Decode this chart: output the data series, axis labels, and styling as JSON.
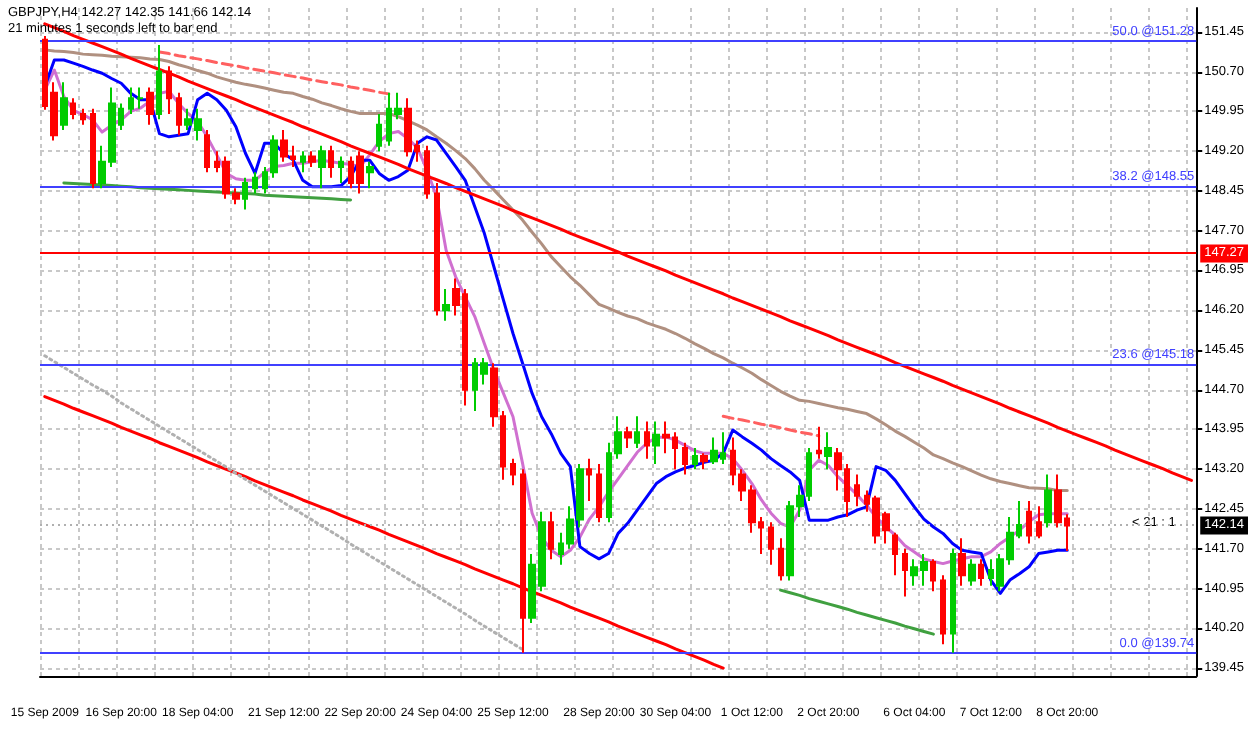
{
  "chart_data": {
    "type": "candlestick",
    "title": "GBPJPY,H4 142.27 142.35 141.66 142.14",
    "subtitle": "21 minutes 1 seconds left to bar end",
    "annotations": [
      "< 21 : 1"
    ],
    "categories": [
      "15 Sep 2009",
      null,
      null,
      null,
      null,
      null,
      null,
      null,
      "16 Sep 20:00",
      null,
      null,
      null,
      null,
      null,
      null,
      null,
      "18 Sep 04:00",
      null,
      null,
      null,
      null,
      null,
      null,
      null,
      null,
      "21 Sep 12:00",
      null,
      null,
      null,
      null,
      null,
      null,
      null,
      "22 Sep 20:00",
      null,
      null,
      null,
      null,
      null,
      null,
      null,
      "24 Sep 04:00",
      null,
      null,
      null,
      null,
      null,
      null,
      null,
      "25 Sep 12:00",
      null,
      null,
      null,
      null,
      null,
      null,
      null,
      null,
      "28 Sep 20:00",
      null,
      null,
      null,
      null,
      null,
      null,
      null,
      "30 Sep 04:00",
      null,
      null,
      null,
      null,
      null,
      null,
      null,
      "1 Oct 12:00",
      null,
      null,
      null,
      null,
      null,
      null,
      null,
      "2 Oct 20:00",
      null,
      null,
      null,
      null,
      null,
      null,
      null,
      null,
      "6 Oct 04:00",
      null,
      null,
      null,
      null,
      null,
      null,
      null,
      "7 Oct 12:00",
      null,
      null,
      null,
      null,
      null,
      null,
      null,
      "8 Oct 20:00",
      null,
      null,
      null,
      null,
      null,
      null,
      null,
      null,
      null,
      null,
      null,
      null,
      null
    ],
    "ohlc": [
      [
        151.3,
        151.37,
        149.98,
        150.05
      ],
      [
        150.3,
        150.5,
        149.4,
        149.5
      ],
      [
        149.7,
        150.5,
        149.6,
        150.2
      ],
      [
        150.1,
        150.2,
        149.8,
        149.9
      ],
      [
        149.9,
        150.0,
        149.7,
        149.8
      ],
      [
        149.9,
        150.0,
        148.5,
        148.6
      ],
      [
        148.6,
        149.3,
        148.5,
        149.0
      ],
      [
        149.0,
        150.4,
        148.9,
        150.1
      ],
      [
        149.7,
        150.1,
        149.6,
        150.0
      ],
      [
        150.0,
        150.4,
        149.9,
        150.2
      ],
      [
        150.2,
        150.4,
        150.0,
        150.2
      ],
      [
        150.3,
        150.4,
        149.7,
        149.9
      ],
      [
        149.9,
        151.2,
        149.8,
        150.7
      ],
      [
        150.7,
        150.8,
        149.9,
        150.2
      ],
      [
        150.2,
        150.3,
        149.5,
        149.7
      ],
      [
        149.7,
        150.0,
        149.6,
        149.8
      ],
      [
        149.6,
        150.0,
        149.4,
        149.8
      ],
      [
        149.5,
        149.6,
        148.8,
        148.9
      ],
      [
        149.0,
        149.2,
        148.8,
        148.9
      ],
      [
        149.0,
        149.1,
        148.3,
        148.4
      ],
      [
        148.4,
        148.5,
        148.2,
        148.3
      ],
      [
        148.3,
        148.7,
        148.1,
        148.6
      ],
      [
        148.5,
        148.8,
        148.4,
        148.7
      ],
      [
        148.5,
        148.9,
        148.4,
        148.8
      ],
      [
        148.8,
        149.5,
        148.7,
        149.4
      ],
      [
        149.4,
        149.6,
        149.0,
        149.1
      ],
      [
        149.1,
        149.3,
        148.9,
        149.05
      ],
      [
        149.0,
        149.2,
        148.8,
        149.1
      ],
      [
        149.1,
        149.2,
        148.9,
        149.0
      ],
      [
        148.9,
        149.3,
        148.5,
        149.2
      ],
      [
        149.2,
        149.3,
        148.7,
        148.9
      ],
      [
        148.9,
        149.1,
        148.6,
        149.0
      ],
      [
        149.0,
        149.1,
        148.5,
        148.6
      ],
      [
        149.1,
        149.2,
        148.4,
        148.6
      ],
      [
        148.8,
        149.0,
        148.5,
        148.9
      ],
      [
        149.3,
        149.9,
        149.2,
        149.7
      ],
      [
        149.4,
        150.3,
        149.3,
        150.0
      ],
      [
        149.9,
        150.3,
        149.8,
        150.0
      ],
      [
        150.0,
        150.2,
        149.1,
        149.2
      ],
      [
        149.3,
        149.4,
        149.0,
        149.2
      ],
      [
        149.2,
        149.3,
        148.3,
        148.4
      ],
      [
        148.4,
        148.6,
        146.1,
        146.2
      ],
      [
        146.2,
        146.6,
        146.0,
        146.3
      ],
      [
        146.6,
        146.8,
        146.1,
        146.3
      ],
      [
        146.5,
        146.6,
        144.4,
        144.7
      ],
      [
        144.7,
        145.3,
        144.3,
        145.2
      ],
      [
        145.0,
        145.3,
        144.8,
        145.2
      ],
      [
        145.1,
        145.2,
        144.0,
        144.2
      ],
      [
        144.2,
        144.3,
        143.0,
        143.25
      ],
      [
        143.3,
        143.4,
        142.9,
        143.1
      ],
      [
        143.1,
        143.2,
        139.74,
        140.4
      ],
      [
        140.4,
        141.6,
        140.3,
        141.4
      ],
      [
        141.0,
        142.4,
        140.9,
        142.2
      ],
      [
        142.2,
        142.4,
        141.5,
        141.7
      ],
      [
        141.6,
        142.0,
        141.4,
        141.8
      ],
      [
        141.8,
        142.5,
        141.7,
        142.25
      ],
      [
        142.25,
        143.3,
        142.1,
        143.2
      ],
      [
        143.2,
        143.4,
        142.6,
        143.1
      ],
      [
        143.1,
        143.3,
        142.2,
        142.3
      ],
      [
        142.3,
        143.7,
        142.2,
        143.5
      ],
      [
        143.5,
        144.2,
        143.4,
        143.9
      ],
      [
        143.9,
        144.0,
        143.6,
        143.8
      ],
      [
        143.7,
        144.2,
        143.6,
        143.9
      ],
      [
        143.9,
        144.1,
        143.4,
        143.65
      ],
      [
        143.65,
        144.1,
        143.3,
        143.85
      ],
      [
        143.85,
        144.1,
        143.5,
        143.8
      ],
      [
        143.8,
        143.9,
        143.2,
        143.6
      ],
      [
        143.6,
        143.7,
        143.1,
        143.3
      ],
      [
        143.3,
        143.6,
        143.2,
        143.45
      ],
      [
        143.45,
        143.5,
        143.2,
        143.35
      ],
      [
        143.35,
        143.8,
        143.3,
        143.55
      ],
      [
        143.4,
        143.9,
        143.3,
        143.5
      ],
      [
        143.55,
        143.8,
        142.9,
        143.1
      ],
      [
        143.1,
        143.2,
        142.6,
        142.8
      ],
      [
        142.8,
        142.9,
        142.0,
        142.2
      ],
      [
        142.2,
        142.3,
        141.6,
        142.1
      ],
      [
        142.1,
        142.2,
        141.4,
        141.7
      ],
      [
        141.7,
        141.9,
        141.1,
        141.2
      ],
      [
        141.2,
        142.6,
        141.1,
        142.5
      ],
      [
        142.5,
        142.9,
        142.3,
        142.7
      ],
      [
        142.7,
        143.6,
        142.6,
        143.5
      ],
      [
        143.55,
        144.0,
        143.4,
        143.5
      ],
      [
        143.45,
        143.9,
        143.2,
        143.6
      ],
      [
        143.5,
        143.6,
        142.8,
        143.2
      ],
      [
        143.2,
        143.3,
        142.3,
        142.6
      ],
      [
        142.9,
        143.1,
        142.5,
        142.7
      ],
      [
        142.7,
        142.8,
        142.4,
        142.55
      ],
      [
        142.65,
        142.7,
        141.8,
        141.95
      ],
      [
        142.35,
        142.4,
        141.8,
        142.05
      ],
      [
        141.95,
        142.0,
        141.2,
        141.6
      ],
      [
        141.6,
        141.7,
        140.8,
        141.3
      ],
      [
        141.2,
        141.5,
        141.0,
        141.35
      ],
      [
        141.3,
        141.6,
        141.0,
        141.45
      ],
      [
        141.45,
        141.5,
        140.9,
        141.1
      ],
      [
        141.1,
        141.2,
        139.9,
        140.1
      ],
      [
        140.1,
        141.7,
        139.74,
        141.6
      ],
      [
        141.6,
        141.9,
        141.0,
        141.2
      ],
      [
        141.1,
        141.5,
        141.0,
        141.4
      ],
      [
        141.4,
        141.5,
        141.0,
        141.15
      ],
      [
        141.15,
        141.5,
        141.0,
        141.3
      ],
      [
        141.0,
        141.6,
        140.9,
        141.5
      ],
      [
        141.5,
        142.3,
        141.4,
        142.0
      ],
      [
        141.95,
        142.6,
        141.9,
        142.15
      ],
      [
        142.4,
        142.6,
        141.8,
        141.95
      ],
      [
        142.2,
        142.5,
        141.9,
        141.95
      ],
      [
        142.2,
        143.1,
        142.1,
        142.8
      ],
      [
        142.8,
        143.1,
        142.1,
        142.2
      ],
      [
        142.27,
        142.35,
        141.66,
        142.14
      ],
      null,
      null,
      null,
      null,
      null,
      null,
      null,
      null,
      null,
      null,
      null,
      null,
      null
    ],
    "series": [
      {
        "type": "line",
        "color": "#b09080",
        "values": [
          151.11,
          151.09,
          151.08,
          151.06,
          151.03,
          151.02,
          151.01,
          150.99,
          150.98,
          150.97,
          150.96,
          150.94,
          150.93,
          150.89,
          150.83,
          150.78,
          150.72,
          150.67,
          150.6,
          150.55,
          150.5,
          150.46,
          150.43,
          150.39,
          150.35,
          150.31,
          150.29,
          150.23,
          150.18,
          150.11,
          150.06,
          150.0,
          149.95,
          149.91,
          149.91,
          149.91,
          149.91,
          149.85,
          149.77,
          149.69,
          149.6,
          149.47,
          149.35,
          149.21,
          149.06,
          148.87,
          148.65,
          148.47,
          148.28,
          148.09,
          147.9,
          147.67,
          147.45,
          147.21,
          147.02,
          146.83,
          146.67,
          146.49,
          146.31,
          146.24,
          146.16,
          146.09,
          146.04,
          145.96,
          145.9,
          145.84,
          145.76,
          145.67,
          145.57,
          145.48,
          145.38,
          145.3,
          145.2,
          145.11,
          145.01,
          144.89,
          144.78,
          144.67,
          144.58,
          144.5,
          144.48,
          144.44,
          144.4,
          144.36,
          144.33,
          144.29,
          144.25,
          144.15,
          144.04,
          143.92,
          143.82,
          143.71,
          143.6,
          143.47,
          143.4,
          143.32,
          143.25,
          143.17,
          143.09,
          143.02,
          142.97,
          142.93,
          142.89,
          142.85,
          142.84,
          142.83,
          142.8,
          142.8,
          null,
          null,
          null,
          null,
          null,
          null,
          null,
          null,
          null,
          null,
          null,
          null,
          null
        ]
      },
      {
        "type": "line",
        "color": "#d070d0",
        "values": [
          150.35,
          150.73,
          150.23,
          149.97,
          149.89,
          149.79,
          149.56,
          149.69,
          149.79,
          149.95,
          150.01,
          150.14,
          150.29,
          150.33,
          150.1,
          149.91,
          149.76,
          149.47,
          149.13,
          148.78,
          148.68,
          148.65,
          148.65,
          148.8,
          148.91,
          148.93,
          148.97,
          148.97,
          149.0,
          149.03,
          149.0,
          148.97,
          148.95,
          148.91,
          149.13,
          149.38,
          149.53,
          149.57,
          149.44,
          149.26,
          148.84,
          148.34,
          147.33,
          146.83,
          146.45,
          146.08,
          145.57,
          145.07,
          144.63,
          144.19,
          143.31,
          142.37,
          141.92,
          141.67,
          141.55,
          141.67,
          141.92,
          142.26,
          142.49,
          142.77,
          143.02,
          143.27,
          143.52,
          143.69,
          143.8,
          143.81,
          143.75,
          143.65,
          143.55,
          143.5,
          143.5,
          143.5,
          143.4,
          143.18,
          142.93,
          142.62,
          142.37,
          142.18,
          142.11,
          142.43,
          143.18,
          143.37,
          143.27,
          143.06,
          142.89,
          142.72,
          142.52,
          142.3,
          142.11,
          141.96,
          141.76,
          141.64,
          141.51,
          141.46,
          141.42,
          141.47,
          141.51,
          141.55,
          141.55,
          141.64,
          141.8,
          141.92,
          142.05,
          142.21,
          142.34,
          142.36,
          142.36,
          142.36,
          null,
          null,
          null,
          null,
          null,
          null,
          null,
          null,
          null,
          null,
          null,
          null,
          null
        ]
      },
      {
        "type": "line",
        "color": "#0000ff",
        "values": [
          150.41,
          150.92,
          150.92,
          150.86,
          150.8,
          150.73,
          150.67,
          150.57,
          150.48,
          150.29,
          150.17,
          150.17,
          149.53,
          149.47,
          149.5,
          149.53,
          150.17,
          150.29,
          150.17,
          149.97,
          149.66,
          149.16,
          148.78,
          149.35,
          149.35,
          149.16,
          149.03,
          148.65,
          148.53,
          148.53,
          148.53,
          148.55,
          148.72,
          149.03,
          149.03,
          148.78,
          148.65,
          148.72,
          148.84,
          149.35,
          149.47,
          149.41,
          149.16,
          148.91,
          148.65,
          148.15,
          147.65,
          147.02,
          146.39,
          145.76,
          145.2,
          144.63,
          144.19,
          143.87,
          143.5,
          143.25,
          141.74,
          141.61,
          141.51,
          141.61,
          141.99,
          142.18,
          142.43,
          142.68,
          142.93,
          143.06,
          143.15,
          143.22,
          143.27,
          143.33,
          143.37,
          143.5,
          143.94,
          143.81,
          143.69,
          143.56,
          143.4,
          143.27,
          143.15,
          142.99,
          142.24,
          142.24,
          142.24,
          142.3,
          142.34,
          142.43,
          142.49,
          143.25,
          143.18,
          142.99,
          142.74,
          142.49,
          142.26,
          142.11,
          141.99,
          141.8,
          141.67,
          141.64,
          141.61,
          141.11,
          140.86,
          141.11,
          141.23,
          141.36,
          141.61,
          141.64,
          141.67,
          141.67,
          null,
          null,
          null,
          null,
          null,
          null,
          null,
          null,
          null,
          null,
          null,
          null,
          null
        ]
      },
      {
        "type": "line",
        "color": "#ff0000",
        "values": [
          151.6,
          151.53,
          151.46,
          151.38,
          151.31,
          151.24,
          151.17,
          151.1,
          151.03,
          150.95,
          150.88,
          150.81,
          150.74,
          150.67,
          150.6,
          150.52,
          150.45,
          150.38,
          150.31,
          150.24,
          150.17,
          150.09,
          150.02,
          149.95,
          149.88,
          149.81,
          149.74,
          149.66,
          149.59,
          149.52,
          149.45,
          149.38,
          149.3,
          149.23,
          149.16,
          149.09,
          149.02,
          148.95,
          148.87,
          148.8,
          148.73,
          148.66,
          148.59,
          148.51,
          148.44,
          148.37,
          148.3,
          148.23,
          148.16,
          148.08,
          148.01,
          147.94,
          147.87,
          147.8,
          147.73,
          147.65,
          147.58,
          147.51,
          147.44,
          147.37,
          147.3,
          147.22,
          147.15,
          147.08,
          147.01,
          146.94,
          146.86,
          146.79,
          146.72,
          146.65,
          146.58,
          146.51,
          146.43,
          146.36,
          146.29,
          146.22,
          146.15,
          146.08,
          146.0,
          145.93,
          145.86,
          145.79,
          145.72,
          145.64,
          145.57,
          145.5,
          145.43,
          145.36,
          145.29,
          145.21,
          145.14,
          145.07,
          145.0,
          144.93,
          144.86,
          144.78,
          144.71,
          144.64,
          144.57,
          144.5,
          144.43,
          144.35,
          144.28,
          144.21,
          144.14,
          144.07,
          143.99,
          143.92,
          143.85,
          143.78,
          143.71,
          143.64,
          143.56,
          143.49,
          143.42,
          143.35,
          143.28,
          143.21,
          143.13,
          143.06,
          142.99
        ]
      },
      {
        "type": "line",
        "color": "#ff0000",
        "values": [
          144.57,
          144.5,
          144.43,
          144.35,
          144.28,
          144.21,
          144.14,
          144.07,
          143.99,
          143.92,
          143.85,
          143.78,
          143.7,
          143.63,
          143.56,
          143.49,
          143.42,
          143.34,
          143.27,
          143.2,
          143.13,
          143.06,
          142.98,
          142.91,
          142.84,
          142.77,
          142.7,
          142.62,
          142.55,
          142.48,
          142.41,
          142.33,
          142.26,
          142.19,
          142.12,
          142.05,
          141.97,
          141.9,
          141.83,
          141.76,
          141.69,
          141.61,
          141.54,
          141.47,
          141.4,
          141.32,
          141.25,
          141.18,
          141.11,
          141.04,
          140.96,
          140.89,
          140.82,
          140.75,
          140.68,
          140.6,
          140.53,
          140.46,
          140.39,
          140.32,
          140.24,
          140.17,
          140.1,
          140.03,
          139.96,
          139.89,
          139.81,
          139.74,
          139.67,
          139.6,
          139.52,
          139.45,
          null,
          null,
          null,
          null,
          null,
          null,
          null,
          null,
          null,
          null,
          null,
          null,
          null,
          null,
          null,
          null,
          null,
          null,
          null,
          null,
          null,
          null,
          null,
          null,
          null,
          null,
          null,
          null,
          null,
          null,
          null,
          null,
          null,
          null,
          null,
          null,
          null,
          null,
          null,
          null,
          null,
          null,
          null,
          null,
          null,
          null,
          null,
          null,
          null
        ]
      },
      {
        "type": "line",
        "color": "#b0b0b0",
        "line_style": "dotted",
        "values": [
          145.34,
          145.23,
          145.12,
          145.01,
          144.9,
          144.79,
          144.69,
          144.58,
          144.45,
          144.34,
          144.23,
          144.12,
          144.01,
          143.9,
          143.79,
          143.68,
          143.57,
          143.46,
          143.35,
          143.24,
          143.12,
          143.01,
          142.9,
          142.79,
          142.68,
          142.57,
          142.46,
          142.35,
          142.24,
          142.13,
          142.02,
          141.91,
          141.79,
          141.68,
          141.57,
          141.46,
          141.35,
          141.24,
          141.13,
          141.02,
          140.91,
          140.8,
          140.69,
          140.58,
          140.47,
          140.35,
          140.24,
          140.13,
          140.02,
          139.91,
          139.8,
          null,
          null,
          null,
          null,
          null,
          null,
          null,
          null,
          null,
          null,
          null,
          null,
          null,
          null,
          null,
          null,
          null,
          null,
          null,
          null,
          null,
          null,
          null,
          null,
          null,
          null,
          null,
          null,
          null,
          null,
          null,
          null,
          null,
          null,
          null,
          null,
          null,
          null,
          null,
          null,
          null,
          null,
          null,
          null,
          null,
          null,
          null,
          null,
          null,
          null,
          null,
          null,
          null,
          null,
          null,
          null,
          null,
          null,
          null,
          null,
          null,
          null,
          null,
          null,
          null,
          null,
          null,
          null,
          null,
          null
        ]
      },
      {
        "type": "line",
        "color": "#ff6060",
        "line_style": "dashed",
        "values": [
          null,
          null,
          null,
          null,
          null,
          null,
          null,
          null,
          null,
          null,
          null,
          null,
          151.07,
          151.04,
          151.0,
          150.97,
          150.94,
          150.91,
          150.87,
          150.84,
          150.81,
          150.77,
          150.74,
          150.71,
          150.68,
          150.64,
          150.61,
          150.58,
          150.54,
          150.51,
          150.48,
          150.45,
          150.41,
          150.38,
          150.35,
          150.31,
          150.28,
          null,
          null,
          null,
          null,
          null,
          null,
          null,
          null,
          null,
          null,
          null,
          null,
          null,
          null,
          null,
          null,
          null,
          null,
          null,
          null,
          null,
          null,
          null,
          null,
          null,
          null,
          null,
          null,
          null,
          null,
          null,
          null,
          null,
          null,
          null,
          null,
          null,
          null,
          null,
          null,
          null,
          null,
          null,
          null,
          null,
          null,
          null,
          null,
          null,
          null,
          null,
          null,
          null,
          null,
          null,
          null,
          null,
          null,
          null,
          null,
          null,
          null,
          null,
          null,
          null,
          null,
          null,
          null,
          null,
          null,
          null,
          null,
          null,
          null,
          null,
          null,
          null,
          null,
          null,
          null,
          null,
          null,
          null,
          null
        ]
      },
      {
        "type": "line",
        "color": "#ff6060",
        "line_style": "dashed",
        "values": [
          null,
          null,
          null,
          null,
          null,
          null,
          null,
          null,
          null,
          null,
          null,
          null,
          null,
          null,
          null,
          null,
          null,
          null,
          null,
          null,
          null,
          null,
          null,
          null,
          null,
          null,
          null,
          null,
          null,
          null,
          null,
          null,
          null,
          null,
          null,
          null,
          null,
          null,
          null,
          null,
          null,
          null,
          null,
          null,
          null,
          null,
          null,
          null,
          null,
          null,
          null,
          null,
          null,
          null,
          null,
          null,
          null,
          null,
          null,
          null,
          null,
          null,
          null,
          null,
          null,
          null,
          null,
          null,
          null,
          null,
          null,
          144.2,
          144.16,
          144.13,
          144.09,
          144.05,
          144.02,
          143.98,
          143.94,
          143.9,
          143.87,
          143.83,
          null,
          null,
          null,
          null,
          null,
          null,
          null,
          null,
          null,
          null,
          null,
          null,
          null,
          null,
          null,
          null,
          null,
          null,
          null,
          null,
          null,
          null,
          null,
          null,
          null,
          null,
          null,
          null,
          null,
          null,
          null,
          null,
          null,
          null,
          null,
          null,
          null,
          null,
          null
        ]
      },
      {
        "type": "line",
        "color": "#40a040",
        "values": [
          null,
          null,
          148.6,
          148.59,
          148.58,
          148.57,
          148.56,
          148.55,
          148.54,
          148.53,
          148.51,
          148.5,
          148.49,
          148.48,
          148.47,
          148.46,
          148.45,
          148.44,
          148.43,
          148.42,
          148.41,
          148.4,
          148.39,
          148.37,
          148.36,
          148.35,
          148.34,
          148.33,
          148.32,
          148.31,
          148.3,
          148.29,
          148.28,
          null,
          null,
          null,
          null,
          null,
          null,
          null,
          null,
          null,
          null,
          null,
          null,
          null,
          null,
          null,
          null,
          null,
          null,
          null,
          null,
          null,
          null,
          null,
          null,
          null,
          null,
          null,
          null,
          null,
          null,
          null,
          null,
          null,
          null,
          null,
          null,
          null,
          null,
          null,
          null,
          null,
          null,
          null,
          null,
          null,
          null,
          null,
          null,
          null,
          null,
          null,
          null,
          null,
          null,
          null,
          null,
          null,
          null,
          null,
          null,
          null,
          null,
          null,
          null,
          null,
          null,
          null,
          null,
          null,
          null,
          null,
          null,
          null,
          null,
          null,
          null,
          null,
          null,
          null,
          null,
          null,
          null,
          null,
          null,
          null,
          null,
          null,
          null
        ]
      },
      {
        "type": "line",
        "color": "#40a040",
        "values": [
          null,
          null,
          null,
          null,
          null,
          null,
          null,
          null,
          null,
          null,
          null,
          null,
          null,
          null,
          null,
          null,
          null,
          null,
          null,
          null,
          null,
          null,
          null,
          null,
          null,
          null,
          null,
          null,
          null,
          null,
          null,
          null,
          null,
          null,
          null,
          null,
          null,
          null,
          null,
          null,
          null,
          null,
          null,
          null,
          null,
          null,
          null,
          null,
          null,
          null,
          null,
          null,
          null,
          null,
          null,
          null,
          null,
          null,
          null,
          null,
          null,
          null,
          null,
          null,
          null,
          null,
          null,
          null,
          null,
          null,
          null,
          null,
          null,
          null,
          null,
          null,
          null,
          140.92,
          140.87,
          140.82,
          140.76,
          140.71,
          140.66,
          140.61,
          140.56,
          140.5,
          140.45,
          140.4,
          140.35,
          140.3,
          140.24,
          140.19,
          140.14,
          140.09,
          null,
          null,
          null,
          null,
          null,
          null,
          null,
          null,
          null,
          null,
          null,
          null,
          null,
          null,
          null,
          null,
          null,
          null,
          null,
          null,
          null,
          null,
          null,
          null,
          null,
          null,
          null
        ]
      }
    ],
    "ref_lines": [
      {
        "axis": "y",
        "value": 151.28,
        "label": "50.0 @151.28",
        "color": "#4040ff"
      },
      {
        "axis": "y",
        "value": 148.55,
        "label": "38.2 @148.55",
        "color": "#4040ff"
      },
      {
        "axis": "y",
        "value": 147.27,
        "label": "147.27",
        "color": "#ff0000"
      },
      {
        "axis": "y",
        "value": 145.18,
        "label": "23.6 @145.18",
        "color": "#4040ff"
      },
      {
        "axis": "y",
        "value": 142.14,
        "label": "142.14",
        "color": "#b0b0b0",
        "line_style": "dotted"
      },
      {
        "axis": "y",
        "value": 139.74,
        "label": "0.0 @139.74",
        "color": "#4040ff"
      }
    ],
    "ylim": [
      139.3,
      151.9
    ],
    "yticks": [
      139.45,
      {
        "value": 140.2,
        "label": "140.20"
      },
      140.95,
      {
        "value": 141.7,
        "label": "141.70"
      },
      142.45,
      {
        "value": 143.2,
        "label": "143.20"
      },
      143.95,
      {
        "value": 144.7,
        "label": "144.70"
      },
      145.45,
      {
        "value": 146.2,
        "label": "146.20"
      },
      146.95,
      {
        "value": 147.7,
        "label": "147.70"
      },
      148.45,
      {
        "value": 149.2,
        "label": "149.20"
      },
      149.95,
      {
        "value": 150.7,
        "label": "150.70"
      },
      151.45
    ],
    "grid": true
  }
}
